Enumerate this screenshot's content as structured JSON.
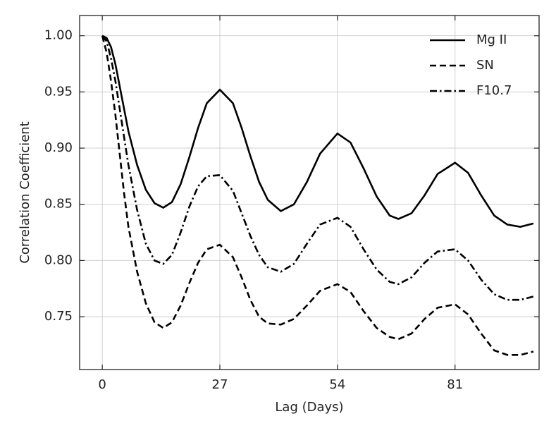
{
  "chart_data": {
    "type": "line",
    "x_label": "Lag (Days)",
    "y_label": "Correlation Coefficient",
    "x": [
      0,
      1,
      2,
      3,
      4,
      5,
      6,
      8,
      10,
      12,
      14,
      16,
      18,
      20,
      22,
      24,
      27,
      30,
      32,
      34,
      36,
      38,
      41,
      44,
      47,
      50,
      54,
      57,
      60,
      63,
      66,
      68,
      71,
      74,
      77,
      81,
      84,
      87,
      90,
      93,
      96,
      99
    ],
    "series": [
      {
        "name": "Mg II",
        "color": "#000000",
        "dash": "solid",
        "values": [
          1.0,
          0.998,
          0.99,
          0.975,
          0.955,
          0.935,
          0.915,
          0.885,
          0.863,
          0.851,
          0.847,
          0.852,
          0.868,
          0.892,
          0.918,
          0.94,
          0.952,
          0.94,
          0.918,
          0.893,
          0.87,
          0.854,
          0.844,
          0.85,
          0.87,
          0.895,
          0.913,
          0.905,
          0.882,
          0.857,
          0.84,
          0.837,
          0.842,
          0.858,
          0.877,
          0.887,
          0.878,
          0.858,
          0.84,
          0.832,
          0.83,
          0.833
        ]
      },
      {
        "name": "SN",
        "color": "#000000",
        "dash": "dashed",
        "values": [
          1.0,
          0.985,
          0.96,
          0.93,
          0.895,
          0.86,
          0.83,
          0.79,
          0.762,
          0.745,
          0.74,
          0.745,
          0.76,
          0.78,
          0.798,
          0.81,
          0.814,
          0.803,
          0.785,
          0.765,
          0.75,
          0.744,
          0.743,
          0.748,
          0.76,
          0.773,
          0.779,
          0.772,
          0.755,
          0.74,
          0.732,
          0.73,
          0.735,
          0.748,
          0.758,
          0.761,
          0.752,
          0.735,
          0.72,
          0.716,
          0.716,
          0.719
        ]
      },
      {
        "name": "F10.7",
        "color": "#000000",
        "dash": "dashdot",
        "values": [
          1.0,
          0.995,
          0.98,
          0.96,
          0.935,
          0.91,
          0.885,
          0.845,
          0.815,
          0.8,
          0.797,
          0.805,
          0.825,
          0.848,
          0.866,
          0.875,
          0.876,
          0.862,
          0.842,
          0.822,
          0.805,
          0.794,
          0.79,
          0.797,
          0.815,
          0.832,
          0.838,
          0.83,
          0.81,
          0.792,
          0.781,
          0.779,
          0.785,
          0.798,
          0.808,
          0.81,
          0.8,
          0.783,
          0.77,
          0.765,
          0.765,
          0.768
        ]
      }
    ],
    "xlim": [
      -5.2,
      100.3
    ],
    "ylim": [
      0.703,
      1.018
    ],
    "xticks": [
      0,
      27,
      54,
      81
    ],
    "yticks": [
      0.75,
      {
        "value": 0.8,
        "label": "0.80"
      },
      0.85,
      {
        "value": 0.9,
        "label": "0.90"
      },
      0.95,
      {
        "value": 1.0,
        "label": "1.00"
      }
    ],
    "grid": true,
    "legend": "upper right"
  }
}
